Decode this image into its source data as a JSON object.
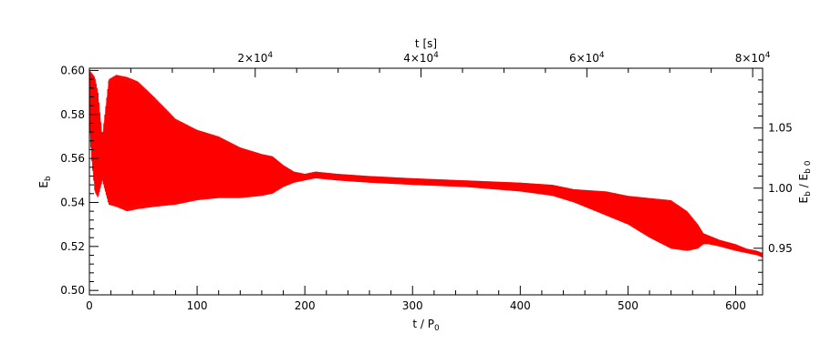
{
  "chart_data": {
    "type": "line",
    "title": "",
    "bottom_axis": {
      "label": "t / P",
      "label_sub": "0",
      "range": [
        0,
        625
      ],
      "ticks": [
        0,
        100,
        200,
        300,
        400,
        500,
        600
      ],
      "tick_labels": [
        "0",
        "100",
        "200",
        "300",
        "400",
        "500",
        "600"
      ]
    },
    "top_axis": {
      "label": "t [s]",
      "range": [
        0,
        81200
      ],
      "ticks": [
        20000,
        40000,
        60000,
        80000
      ],
      "tick_labels": [
        "2×10",
        "4×10",
        "6×10",
        "8×10"
      ],
      "tick_exponent": "4"
    },
    "left_axis": {
      "label": "E",
      "label_sub": "b",
      "range": [
        0.498,
        0.601
      ],
      "ticks": [
        0.5,
        0.52,
        0.54,
        0.56,
        0.58,
        0.6
      ],
      "tick_labels": [
        "0.50",
        "0.52",
        "0.54",
        "0.56",
        "0.58",
        "0.60"
      ]
    },
    "right_axis": {
      "label": "E",
      "label_sub": "b",
      "label_div": " / E",
      "label_div_sub": "b 0",
      "ticks": [
        0.95,
        1.0,
        1.05
      ],
      "tick_labels": [
        "0.95",
        "1.00",
        "1.05"
      ],
      "e0": 0.5465
    },
    "series": [
      {
        "color": "#ff0000",
        "envelope": {
          "t": [
            0,
            2,
            5,
            8,
            12,
            18,
            25,
            35,
            45,
            60,
            80,
            100,
            120,
            140,
            160,
            170,
            180,
            190,
            200,
            210,
            230,
            260,
            300,
            350,
            400,
            430,
            450,
            480,
            500,
            520,
            540,
            555,
            565,
            570,
            575,
            585,
            600,
            610,
            620,
            625
          ],
          "upper": [
            0.6,
            0.599,
            0.597,
            0.59,
            0.57,
            0.596,
            0.598,
            0.597,
            0.595,
            0.588,
            0.578,
            0.573,
            0.57,
            0.565,
            0.562,
            0.561,
            0.557,
            0.554,
            0.553,
            0.554,
            0.553,
            0.552,
            0.551,
            0.55,
            0.549,
            0.548,
            0.546,
            0.545,
            0.543,
            0.542,
            0.541,
            0.536,
            0.53,
            0.526,
            0.525,
            0.523,
            0.521,
            0.519,
            0.518,
            0.517
          ],
          "lower": [
            0.575,
            0.56,
            0.545,
            0.542,
            0.55,
            0.539,
            0.538,
            0.536,
            0.537,
            0.538,
            0.539,
            0.541,
            0.542,
            0.542,
            0.543,
            0.544,
            0.547,
            0.549,
            0.55,
            0.551,
            0.55,
            0.549,
            0.548,
            0.547,
            0.545,
            0.543,
            0.54,
            0.534,
            0.53,
            0.524,
            0.519,
            0.518,
            0.519,
            0.521,
            0.521,
            0.52,
            0.518,
            0.517,
            0.516,
            0.515
          ]
        }
      }
    ]
  }
}
